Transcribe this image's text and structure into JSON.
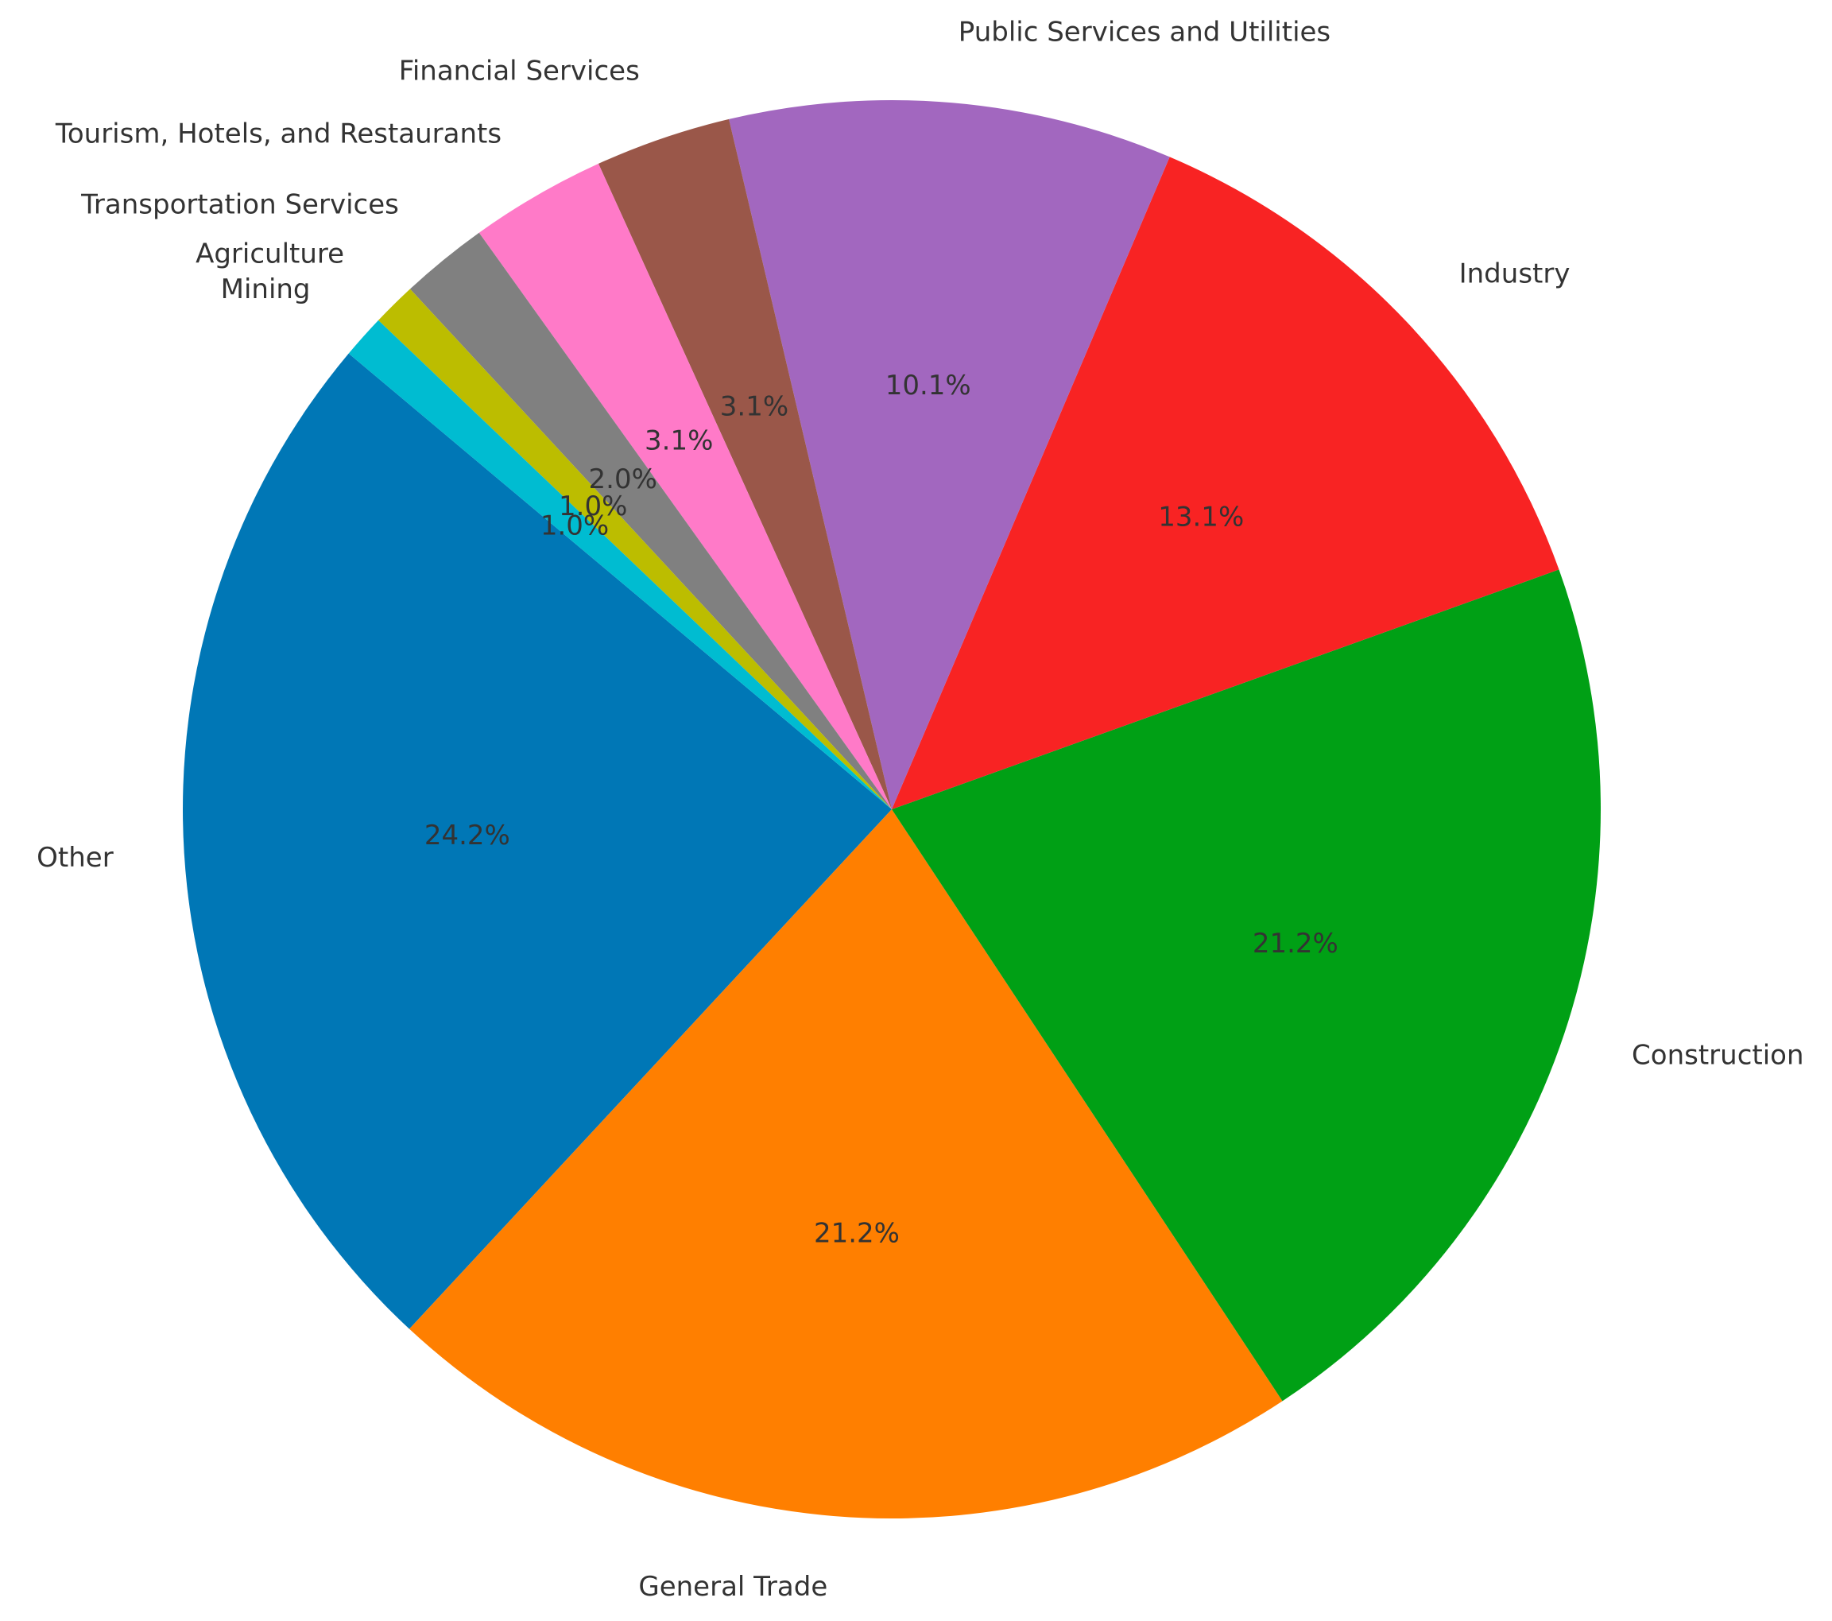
{
  "chart_data": {
    "type": "pie",
    "categories": [
      "Other",
      "General Trade",
      "Construction",
      "Industry",
      "Public Services and Utilities",
      "Financial Services",
      "Tourism, Hotels, and Restaurants",
      "Transportation Services",
      "Agriculture",
      "Mining"
    ],
    "values": [
      24.2,
      21.2,
      21.2,
      13.1,
      10.1,
      3.1,
      3.1,
      2.0,
      1.0,
      1.0
    ],
    "value_labels": [
      "24.2%",
      "21.2%",
      "21.2%",
      "13.1%",
      "10.1%",
      "3.1%",
      "3.1%",
      "2.0%",
      "1.0%",
      "1.0%"
    ],
    "colors": [
      "#0077b6",
      "#ff7f00",
      "#00a015",
      "#f82323",
      "#a267bf",
      "#9a5749",
      "#ff7ac8",
      "#808080",
      "#bcbd00",
      "#00bcd1"
    ],
    "start_angle_deg": 140,
    "direction": "counterclockwise",
    "title": "",
    "legend": "none"
  }
}
